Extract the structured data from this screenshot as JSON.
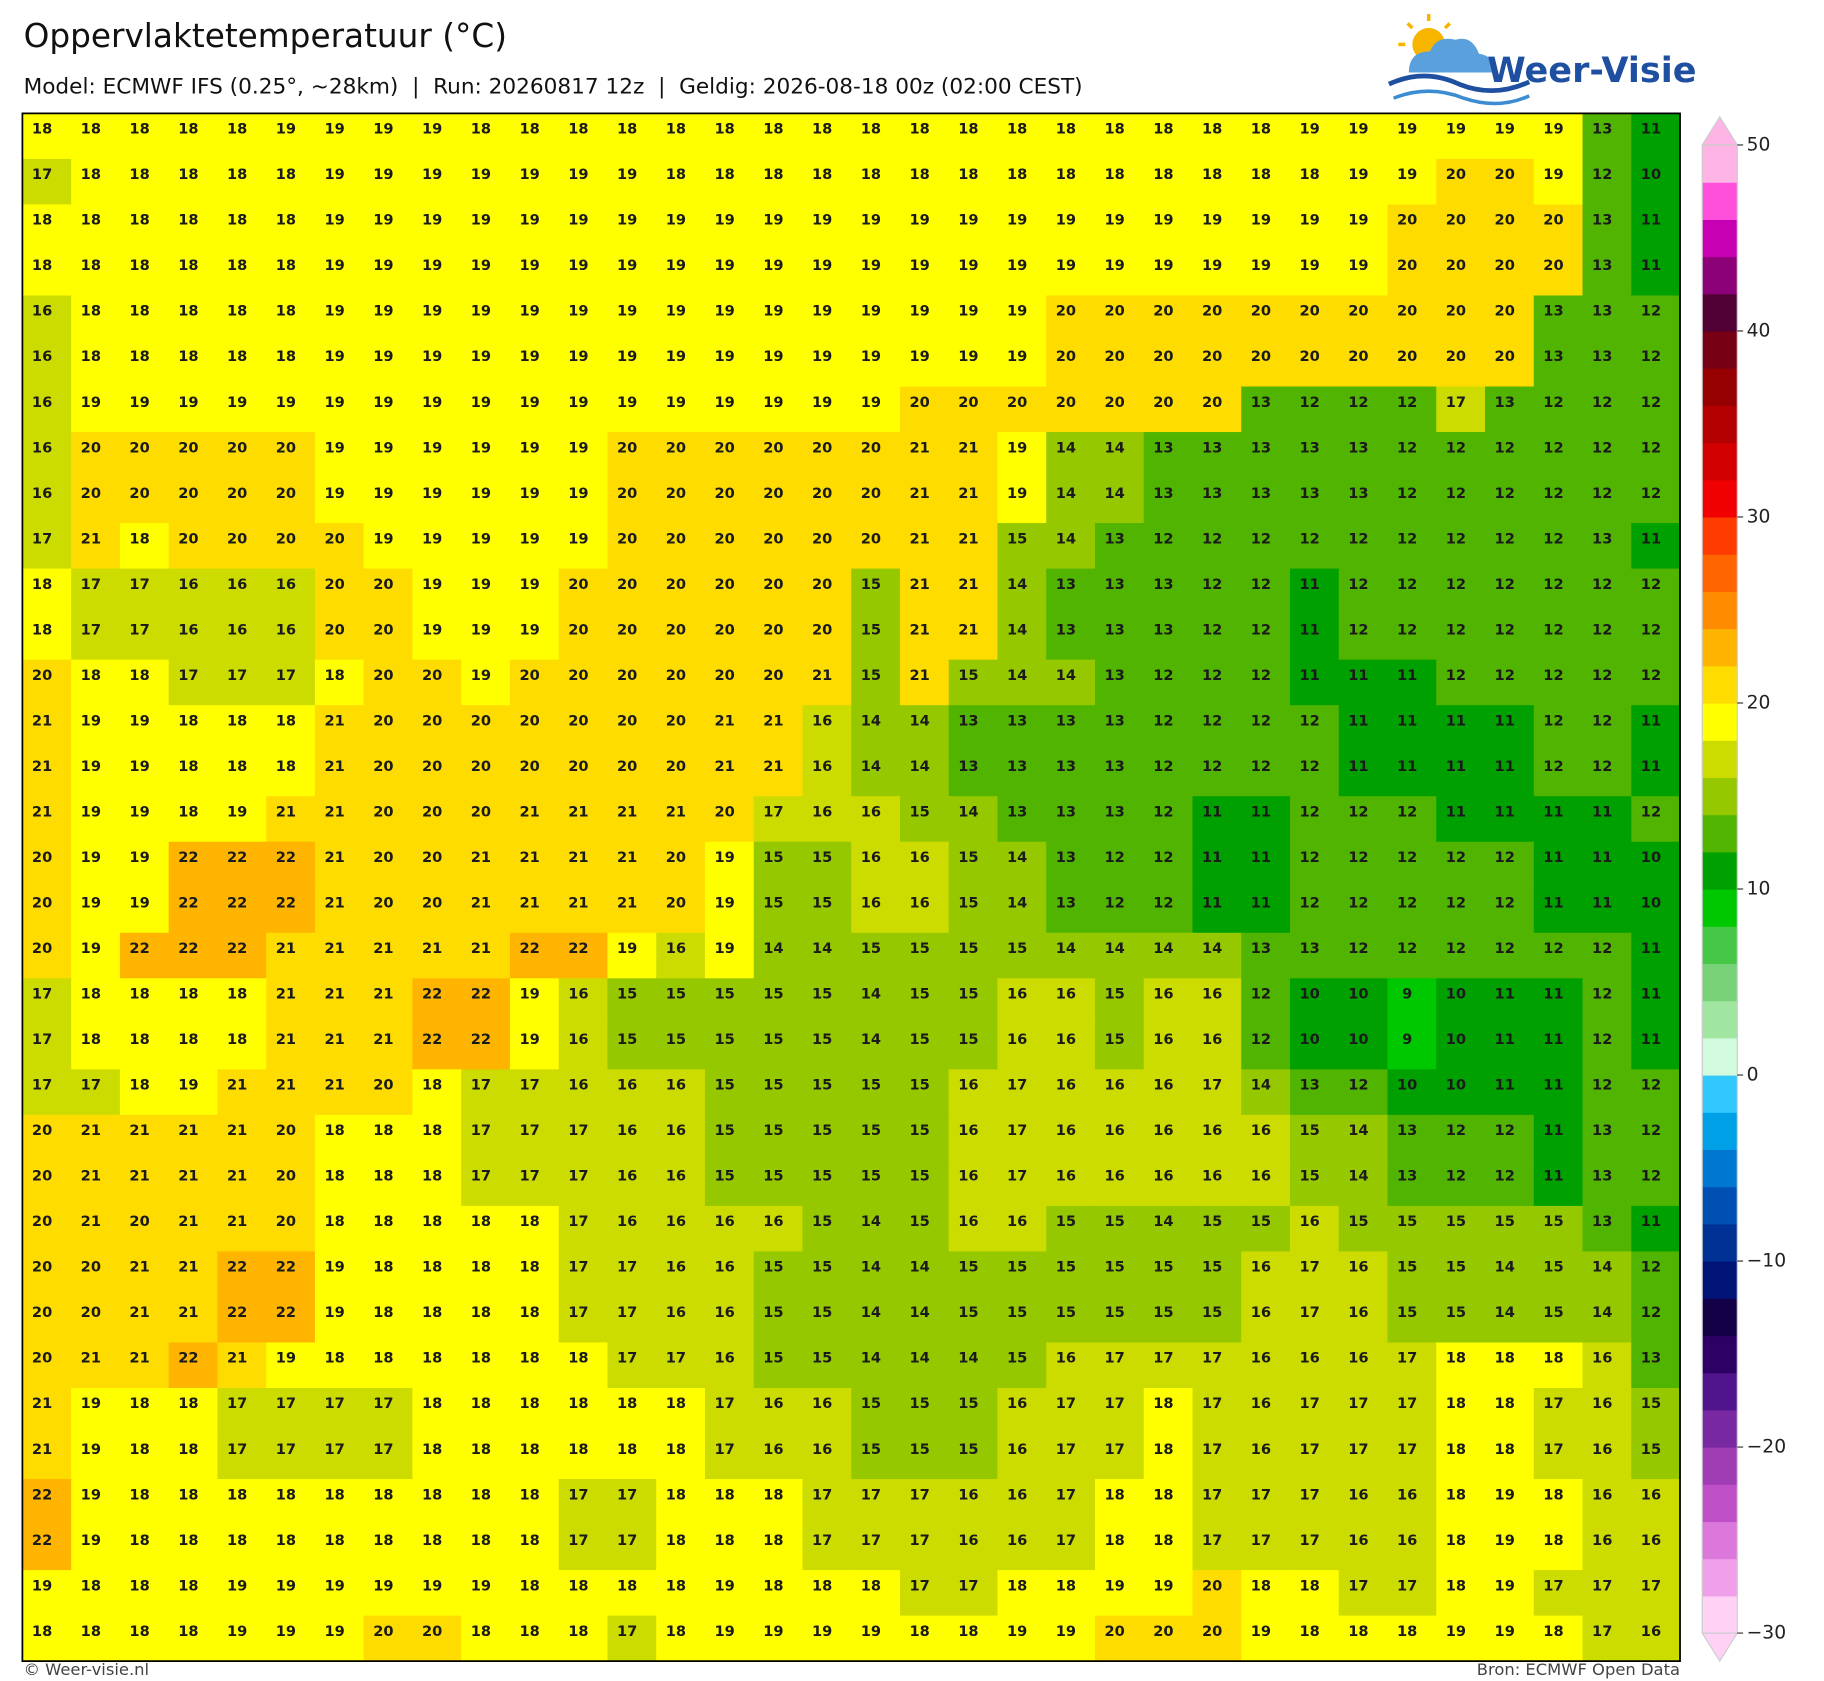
{
  "header": {
    "title": "Oppervlaktetemperatuur (°C)",
    "subtitle": "Model: ECMWF IFS (0.25°, ~28km)  |  Run: 20260817 12z  |  Geldig: 2026-08-18 00z (02:00 CEST)",
    "logo": "Weer-Visie"
  },
  "grid": {
    "rows": [
      [
        18,
        18,
        18,
        18,
        18,
        19,
        19,
        19,
        19,
        18,
        18,
        18,
        18,
        18,
        18,
        18,
        18,
        18,
        18,
        18,
        18,
        18,
        18,
        18,
        18,
        18,
        19,
        19,
        19,
        19,
        19,
        19,
        13,
        11
      ],
      [
        17,
        18,
        18,
        18,
        18,
        18,
        19,
        19,
        19,
        19,
        19,
        19,
        19,
        18,
        18,
        18,
        18,
        18,
        18,
        18,
        18,
        18,
        18,
        18,
        18,
        18,
        18,
        19,
        19,
        20,
        20,
        19,
        12,
        10
      ],
      [
        18,
        18,
        18,
        18,
        18,
        18,
        19,
        19,
        19,
        19,
        19,
        19,
        19,
        19,
        19,
        19,
        19,
        19,
        19,
        19,
        19,
        19,
        19,
        19,
        19,
        19,
        19,
        19,
        20,
        20,
        20,
        20,
        13,
        11
      ],
      [
        18,
        18,
        18,
        18,
        18,
        18,
        19,
        19,
        19,
        19,
        19,
        19,
        19,
        19,
        19,
        19,
        19,
        19,
        19,
        19,
        19,
        19,
        19,
        19,
        19,
        19,
        19,
        19,
        20,
        20,
        20,
        20,
        13,
        11
      ],
      [
        16,
        18,
        18,
        18,
        18,
        18,
        19,
        19,
        19,
        19,
        19,
        19,
        19,
        19,
        19,
        19,
        19,
        19,
        19,
        19,
        19,
        20,
        20,
        20,
        20,
        20,
        20,
        20,
        20,
        20,
        20,
        13,
        13,
        12
      ],
      [
        16,
        18,
        18,
        18,
        18,
        18,
        19,
        19,
        19,
        19,
        19,
        19,
        19,
        19,
        19,
        19,
        19,
        19,
        19,
        19,
        19,
        20,
        20,
        20,
        20,
        20,
        20,
        20,
        20,
        20,
        20,
        13,
        13,
        12
      ],
      [
        16,
        19,
        19,
        19,
        19,
        19,
        19,
        19,
        19,
        19,
        19,
        19,
        19,
        19,
        19,
        19,
        19,
        19,
        20,
        20,
        20,
        20,
        20,
        20,
        20,
        13,
        12,
        12,
        12,
        17,
        13,
        12,
        12,
        12
      ],
      [
        16,
        20,
        20,
        20,
        20,
        20,
        19,
        19,
        19,
        19,
        19,
        19,
        20,
        20,
        20,
        20,
        20,
        20,
        21,
        21,
        19,
        14,
        14,
        13,
        13,
        13,
        13,
        13,
        12,
        12,
        12,
        12,
        12,
        12
      ],
      [
        16,
        20,
        20,
        20,
        20,
        20,
        19,
        19,
        19,
        19,
        19,
        19,
        20,
        20,
        20,
        20,
        20,
        20,
        21,
        21,
        19,
        14,
        14,
        13,
        13,
        13,
        13,
        13,
        12,
        12,
        12,
        12,
        12,
        12
      ],
      [
        17,
        21,
        18,
        20,
        20,
        20,
        20,
        19,
        19,
        19,
        19,
        19,
        20,
        20,
        20,
        20,
        20,
        20,
        21,
        21,
        15,
        14,
        13,
        12,
        12,
        12,
        12,
        12,
        12,
        12,
        12,
        12,
        13,
        11
      ],
      [
        18,
        17,
        17,
        16,
        16,
        16,
        20,
        20,
        19,
        19,
        19,
        20,
        20,
        20,
        20,
        20,
        20,
        15,
        21,
        21,
        14,
        13,
        13,
        13,
        12,
        12,
        11,
        12,
        12,
        12,
        12,
        12,
        12,
        12
      ],
      [
        18,
        17,
        17,
        16,
        16,
        16,
        20,
        20,
        19,
        19,
        19,
        20,
        20,
        20,
        20,
        20,
        20,
        15,
        21,
        21,
        14,
        13,
        13,
        13,
        12,
        12,
        11,
        12,
        12,
        12,
        12,
        12,
        12,
        12
      ],
      [
        20,
        18,
        18,
        17,
        17,
        17,
        18,
        20,
        20,
        19,
        20,
        20,
        20,
        20,
        20,
        20,
        21,
        15,
        21,
        15,
        14,
        14,
        13,
        12,
        12,
        12,
        11,
        11,
        11,
        12,
        12,
        12,
        12,
        12
      ],
      [
        21,
        19,
        19,
        18,
        18,
        18,
        21,
        20,
        20,
        20,
        20,
        20,
        20,
        20,
        21,
        21,
        16,
        14,
        14,
        13,
        13,
        13,
        13,
        12,
        12,
        12,
        12,
        11,
        11,
        11,
        11,
        12,
        12,
        11
      ],
      [
        21,
        19,
        19,
        18,
        18,
        18,
        21,
        20,
        20,
        20,
        20,
        20,
        20,
        20,
        21,
        21,
        16,
        14,
        14,
        13,
        13,
        13,
        13,
        12,
        12,
        12,
        12,
        11,
        11,
        11,
        11,
        12,
        12,
        11
      ],
      [
        21,
        19,
        19,
        18,
        19,
        21,
        21,
        20,
        20,
        20,
        21,
        21,
        21,
        21,
        20,
        17,
        16,
        16,
        15,
        14,
        13,
        13,
        13,
        12,
        11,
        11,
        12,
        12,
        12,
        11,
        11,
        11,
        11,
        12
      ],
      [
        20,
        19,
        19,
        22,
        22,
        22,
        21,
        20,
        20,
        21,
        21,
        21,
        21,
        20,
        19,
        15,
        15,
        16,
        16,
        15,
        14,
        13,
        12,
        12,
        11,
        11,
        12,
        12,
        12,
        12,
        12,
        11,
        11,
        10
      ],
      [
        20,
        19,
        19,
        22,
        22,
        22,
        21,
        20,
        20,
        21,
        21,
        21,
        21,
        20,
        19,
        15,
        15,
        16,
        16,
        15,
        14,
        13,
        12,
        12,
        11,
        11,
        12,
        12,
        12,
        12,
        12,
        11,
        11,
        10
      ],
      [
        20,
        19,
        22,
        22,
        22,
        21,
        21,
        21,
        21,
        21,
        22,
        22,
        19,
        16,
        19,
        14,
        14,
        15,
        15,
        15,
        15,
        14,
        14,
        14,
        14,
        13,
        13,
        12,
        12,
        12,
        12,
        12,
        12,
        11
      ],
      [
        17,
        18,
        18,
        18,
        18,
        21,
        21,
        21,
        22,
        22,
        19,
        16,
        15,
        15,
        15,
        15,
        15,
        14,
        15,
        15,
        16,
        16,
        15,
        16,
        16,
        12,
        10,
        10,
        9,
        10,
        11,
        11,
        12,
        11
      ],
      [
        17,
        18,
        18,
        18,
        18,
        21,
        21,
        21,
        22,
        22,
        19,
        16,
        15,
        15,
        15,
        15,
        15,
        14,
        15,
        15,
        16,
        16,
        15,
        16,
        16,
        12,
        10,
        10,
        9,
        10,
        11,
        11,
        12,
        11
      ],
      [
        17,
        17,
        18,
        19,
        21,
        21,
        21,
        20,
        18,
        17,
        17,
        16,
        16,
        16,
        15,
        15,
        15,
        15,
        15,
        16,
        17,
        16,
        16,
        16,
        17,
        14,
        13,
        12,
        10,
        10,
        11,
        11,
        12,
        12
      ],
      [
        20,
        21,
        21,
        21,
        21,
        20,
        18,
        18,
        18,
        17,
        17,
        17,
        16,
        16,
        15,
        15,
        15,
        15,
        15,
        16,
        17,
        16,
        16,
        16,
        16,
        16,
        15,
        14,
        13,
        12,
        12,
        11,
        13,
        12
      ],
      [
        20,
        21,
        21,
        21,
        21,
        20,
        18,
        18,
        18,
        17,
        17,
        17,
        16,
        16,
        15,
        15,
        15,
        15,
        15,
        16,
        17,
        16,
        16,
        16,
        16,
        16,
        15,
        14,
        13,
        12,
        12,
        11,
        13,
        12
      ],
      [
        20,
        21,
        20,
        21,
        21,
        20,
        18,
        18,
        18,
        18,
        18,
        17,
        16,
        16,
        16,
        16,
        15,
        14,
        15,
        16,
        16,
        15,
        15,
        14,
        15,
        15,
        16,
        15,
        15,
        15,
        15,
        15,
        13,
        11
      ],
      [
        20,
        20,
        21,
        21,
        22,
        22,
        19,
        18,
        18,
        18,
        18,
        17,
        17,
        16,
        16,
        15,
        15,
        14,
        14,
        15,
        15,
        15,
        15,
        15,
        15,
        16,
        17,
        16,
        15,
        15,
        14,
        15,
        14,
        12
      ],
      [
        20,
        20,
        21,
        21,
        22,
        22,
        19,
        18,
        18,
        18,
        18,
        17,
        17,
        16,
        16,
        15,
        15,
        14,
        14,
        15,
        15,
        15,
        15,
        15,
        15,
        16,
        17,
        16,
        15,
        15,
        14,
        15,
        14,
        12
      ],
      [
        20,
        21,
        21,
        22,
        21,
        19,
        18,
        18,
        18,
        18,
        18,
        18,
        17,
        17,
        16,
        15,
        15,
        14,
        14,
        14,
        15,
        16,
        17,
        17,
        17,
        16,
        16,
        16,
        17,
        18,
        18,
        18,
        16,
        13
      ],
      [
        21,
        19,
        18,
        18,
        17,
        17,
        17,
        17,
        18,
        18,
        18,
        18,
        18,
        18,
        17,
        16,
        16,
        15,
        15,
        15,
        16,
        17,
        17,
        18,
        17,
        16,
        17,
        17,
        17,
        18,
        18,
        17,
        16,
        15
      ],
      [
        21,
        19,
        18,
        18,
        17,
        17,
        17,
        17,
        18,
        18,
        18,
        18,
        18,
        18,
        17,
        16,
        16,
        15,
        15,
        15,
        16,
        17,
        17,
        18,
        17,
        16,
        17,
        17,
        17,
        18,
        18,
        17,
        16,
        15
      ],
      [
        22,
        19,
        18,
        18,
        18,
        18,
        18,
        18,
        18,
        18,
        18,
        17,
        17,
        18,
        18,
        18,
        17,
        17,
        17,
        16,
        16,
        17,
        18,
        18,
        17,
        17,
        17,
        16,
        16,
        18,
        19,
        18,
        16,
        16
      ],
      [
        22,
        19,
        18,
        18,
        18,
        18,
        18,
        18,
        18,
        18,
        18,
        17,
        17,
        18,
        18,
        18,
        17,
        17,
        17,
        16,
        16,
        17,
        18,
        18,
        17,
        17,
        17,
        16,
        16,
        18,
        19,
        18,
        16,
        16
      ],
      [
        19,
        18,
        18,
        18,
        19,
        19,
        19,
        19,
        19,
        19,
        18,
        18,
        18,
        18,
        19,
        18,
        18,
        18,
        17,
        17,
        18,
        18,
        19,
        19,
        20,
        18,
        18,
        17,
        17,
        18,
        19,
        17,
        17,
        17
      ],
      [
        18,
        18,
        18,
        18,
        19,
        19,
        19,
        20,
        20,
        18,
        18,
        18,
        17,
        18,
        19,
        19,
        19,
        19,
        18,
        18,
        19,
        19,
        20,
        20,
        20,
        19,
        18,
        18,
        18,
        19,
        19,
        18,
        17,
        16
      ]
    ]
  },
  "colorbar": {
    "clim": [
      -30,
      50
    ],
    "ticks": [
      50,
      40,
      30,
      20,
      10,
      0,
      {
        "value": -10,
        "label": "−10"
      },
      {
        "value": -20,
        "label": "−20"
      },
      {
        "value": -30,
        "label": "−30"
      }
    ],
    "colors": [
      "#ffd2f5",
      "#f0a0eb",
      "#dc78dc",
      "#c050c8",
      "#a03cb4",
      "#7828a0",
      "#50148c",
      "#2d0064",
      "#140046",
      "#001478",
      "#003296",
      "#0050b4",
      "#0078d2",
      "#00a0e6",
      "#32c8ff",
      "#d2fadc",
      "#a0e6a0",
      "#78d278",
      "#46c846",
      "#00c800",
      "#00a000",
      "#50b400",
      "#96c800",
      "#cddc00",
      "#ffff00",
      "#ffdc00",
      "#ffb400",
      "#ff8c00",
      "#ff6400",
      "#ff3c00",
      "#f00000",
      "#d20000",
      "#b40000",
      "#960000",
      "#780014",
      "#500032",
      "#8c0078",
      "#c800b4",
      "#ff50dc",
      "#ffb4e6"
    ]
  },
  "footer": {
    "left": "© Weer-visie.nl",
    "right": "Bron: ECMWF Open Data"
  }
}
